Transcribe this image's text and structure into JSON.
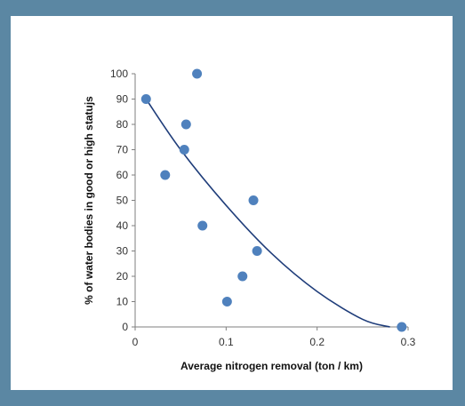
{
  "chart_data": {
    "type": "scatter",
    "title": "",
    "xlabel": "Average nitrogen removal (ton / km)",
    "ylabel": "% of water bodies in good or high statujs",
    "xlim": [
      0,
      0.3
    ],
    "ylim": [
      0,
      100
    ],
    "x_ticks": [
      "0",
      "0.1",
      "0.2",
      "0.3"
    ],
    "y_ticks": [
      "0",
      "10",
      "20",
      "30",
      "40",
      "50",
      "60",
      "70",
      "80",
      "90",
      "100"
    ],
    "grid": false,
    "legend": "none",
    "points": [
      {
        "x": 0.012,
        "y": 90
      },
      {
        "x": 0.033,
        "y": 60
      },
      {
        "x": 0.054,
        "y": 70
      },
      {
        "x": 0.056,
        "y": 80
      },
      {
        "x": 0.068,
        "y": 100
      },
      {
        "x": 0.074,
        "y": 40
      },
      {
        "x": 0.101,
        "y": 10
      },
      {
        "x": 0.118,
        "y": 20
      },
      {
        "x": 0.13,
        "y": 50
      },
      {
        "x": 0.134,
        "y": 30
      },
      {
        "x": 0.293,
        "y": 0
      }
    ],
    "trendline": {
      "type": "polynomial",
      "x": [
        0.012,
        0.05,
        0.1,
        0.15,
        0.2,
        0.25,
        0.28
      ],
      "y": [
        90,
        70,
        48,
        29,
        14,
        3,
        0
      ]
    },
    "colors": {
      "marker": "#4f81bd",
      "trendline": "#1f3d7a",
      "axis": "#7f7f7f"
    }
  }
}
